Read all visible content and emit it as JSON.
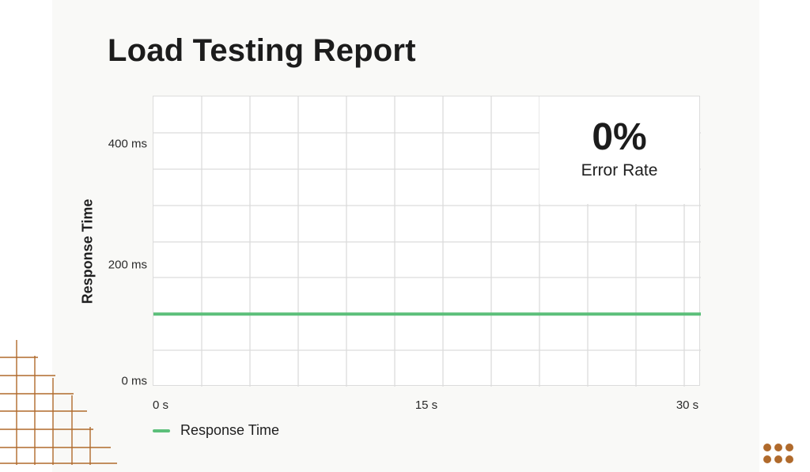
{
  "title": "Load Testing Report",
  "chart_data": {
    "type": "line",
    "ylabel": "Response Time",
    "xlabel": "",
    "yticks": [
      {
        "value": 0,
        "label": "0 ms"
      },
      {
        "value": 200,
        "label": "200 ms"
      },
      {
        "value": 400,
        "label": "400 ms"
      }
    ],
    "xticks": [
      {
        "value": 0,
        "label": "0 s"
      },
      {
        "value": 15,
        "label": "15 s"
      },
      {
        "value": 30,
        "label": "30 s"
      }
    ],
    "xlim": [
      0,
      30
    ],
    "ylim": [
      0,
      480
    ],
    "grid": true,
    "legend_position": "bottom-left",
    "series": [
      {
        "name": "Response Time",
        "color": "#5cbf7a",
        "x": [
          0,
          30
        ],
        "y": [
          120,
          120
        ]
      }
    ]
  },
  "stat": {
    "value": "0%",
    "label": "Error Rate"
  },
  "colors": {
    "accent_line": "#5cbf7a",
    "decoration": "#b06a2c",
    "grid": "#dcdcdc"
  }
}
